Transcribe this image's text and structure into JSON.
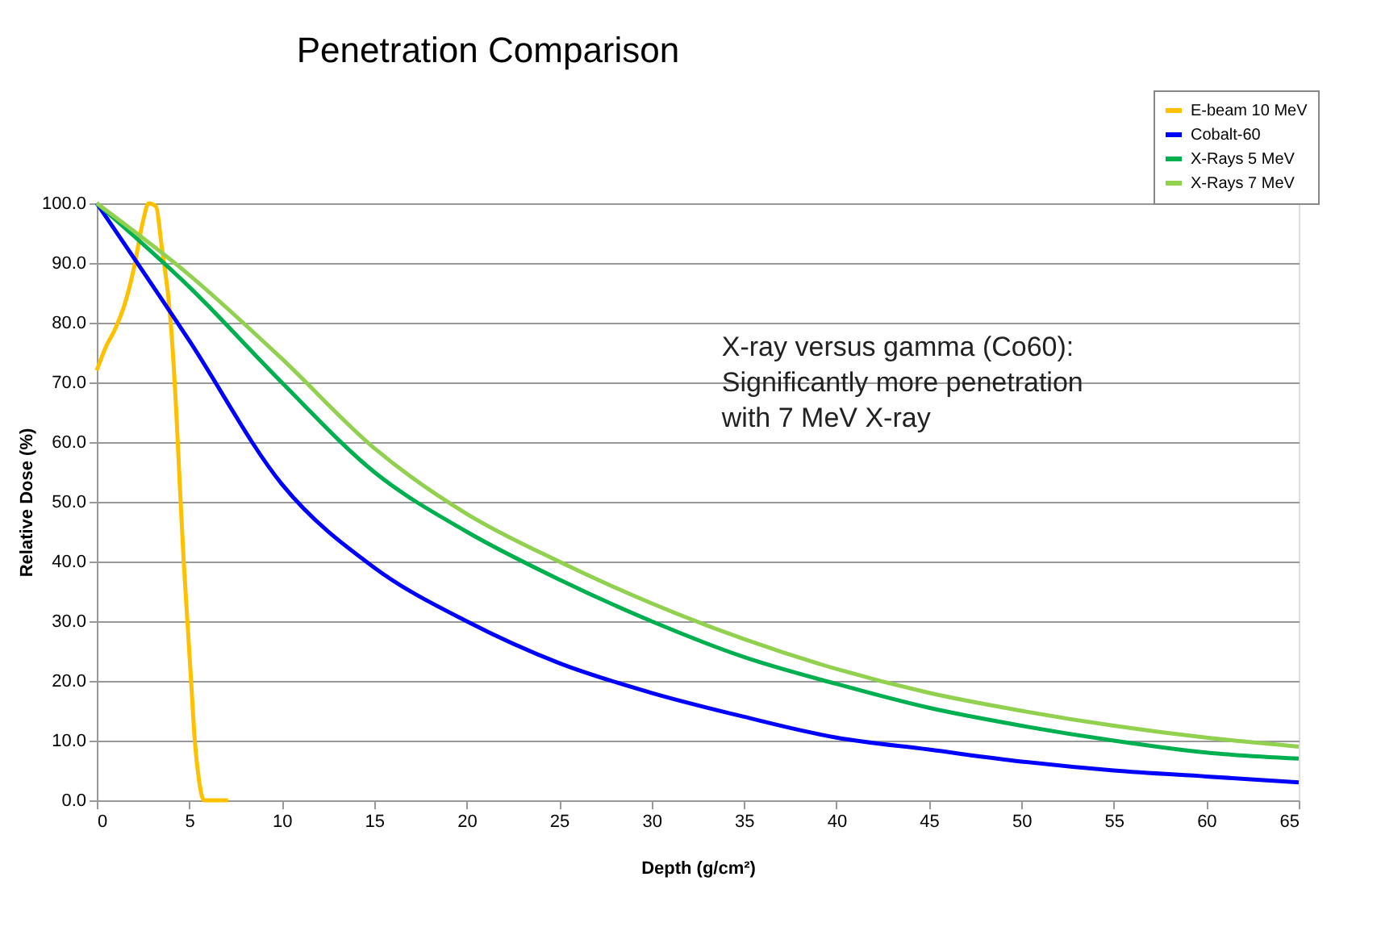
{
  "chart_data": {
    "type": "line",
    "title": "Penetration Comparison",
    "xlabel": "Depth (g/cm²)",
    "ylabel": "Relative Dose (%)",
    "xlim": [
      0,
      65
    ],
    "xticks": [
      0,
      5,
      10,
      15,
      20,
      25,
      30,
      35,
      40,
      45,
      50,
      55,
      60,
      65
    ],
    "ylim": [
      0,
      100
    ],
    "yticks": [
      {
        "value": 0,
        "label": "0.0"
      },
      {
        "value": 10,
        "label": "10.0"
      },
      {
        "value": 20,
        "label": "20.0"
      },
      {
        "value": 30,
        "label": "30.0"
      },
      {
        "value": 40,
        "label": "40.0"
      },
      {
        "value": 50,
        "label": "50.0"
      },
      {
        "value": 60,
        "label": "60.0"
      },
      {
        "value": 70,
        "label": "70.0"
      },
      {
        "value": 80,
        "label": "80.0"
      },
      {
        "value": 90,
        "label": "90.0"
      },
      {
        "value": 100,
        "label": "100.0"
      }
    ],
    "grid": "y",
    "legend": "top right",
    "marker": "none",
    "line_style": "solid",
    "annotations": [
      "X-ray versus gamma (Co60):\nSignificantly more penetration\nwith 7 MeV X-ray"
    ],
    "series": [
      {
        "name": "E-beam 10 MeV",
        "color": "#ffc000",
        "x": [
          0,
          0.5,
          1,
          1.5,
          2,
          2.5,
          2.8,
          3.2,
          3.5,
          4,
          4.3,
          4.5,
          4.7,
          4.9,
          5.1,
          5.3,
          5.5,
          5.8,
          6,
          7.1
        ],
        "values": [
          72,
          76,
          79,
          83,
          89,
          97,
          100,
          99.5,
          93,
          80,
          65,
          52,
          40,
          30,
          20,
          10,
          4,
          0,
          0,
          0
        ]
      },
      {
        "name": "Cobalt-60",
        "color": "#0000ff",
        "x": [
          0,
          5,
          10,
          15,
          20,
          25,
          30,
          35,
          40,
          45,
          50,
          55,
          60,
          65
        ],
        "values": [
          100,
          77,
          53,
          39,
          30,
          23,
          18,
          14,
          10.5,
          8.5,
          6.5,
          5,
          4,
          3
        ]
      },
      {
        "name": "X-Rays 5 MeV",
        "color": "#00b050",
        "x": [
          0,
          5,
          10,
          15,
          20,
          25,
          30,
          35,
          40,
          45,
          50,
          55,
          60,
          65
        ],
        "values": [
          100,
          86,
          70,
          55,
          45,
          37,
          30,
          24,
          19.5,
          15.5,
          12.5,
          10,
          8,
          7
        ]
      },
      {
        "name": "X-Rays 7 MeV",
        "color": "#92d050",
        "x": [
          0,
          5,
          10,
          15,
          20,
          25,
          30,
          35,
          40,
          45,
          50,
          55,
          60,
          65
        ],
        "values": [
          100,
          88,
          74,
          59,
          48,
          40,
          33,
          27,
          22,
          18,
          15,
          12.5,
          10.5,
          9
        ]
      }
    ]
  }
}
